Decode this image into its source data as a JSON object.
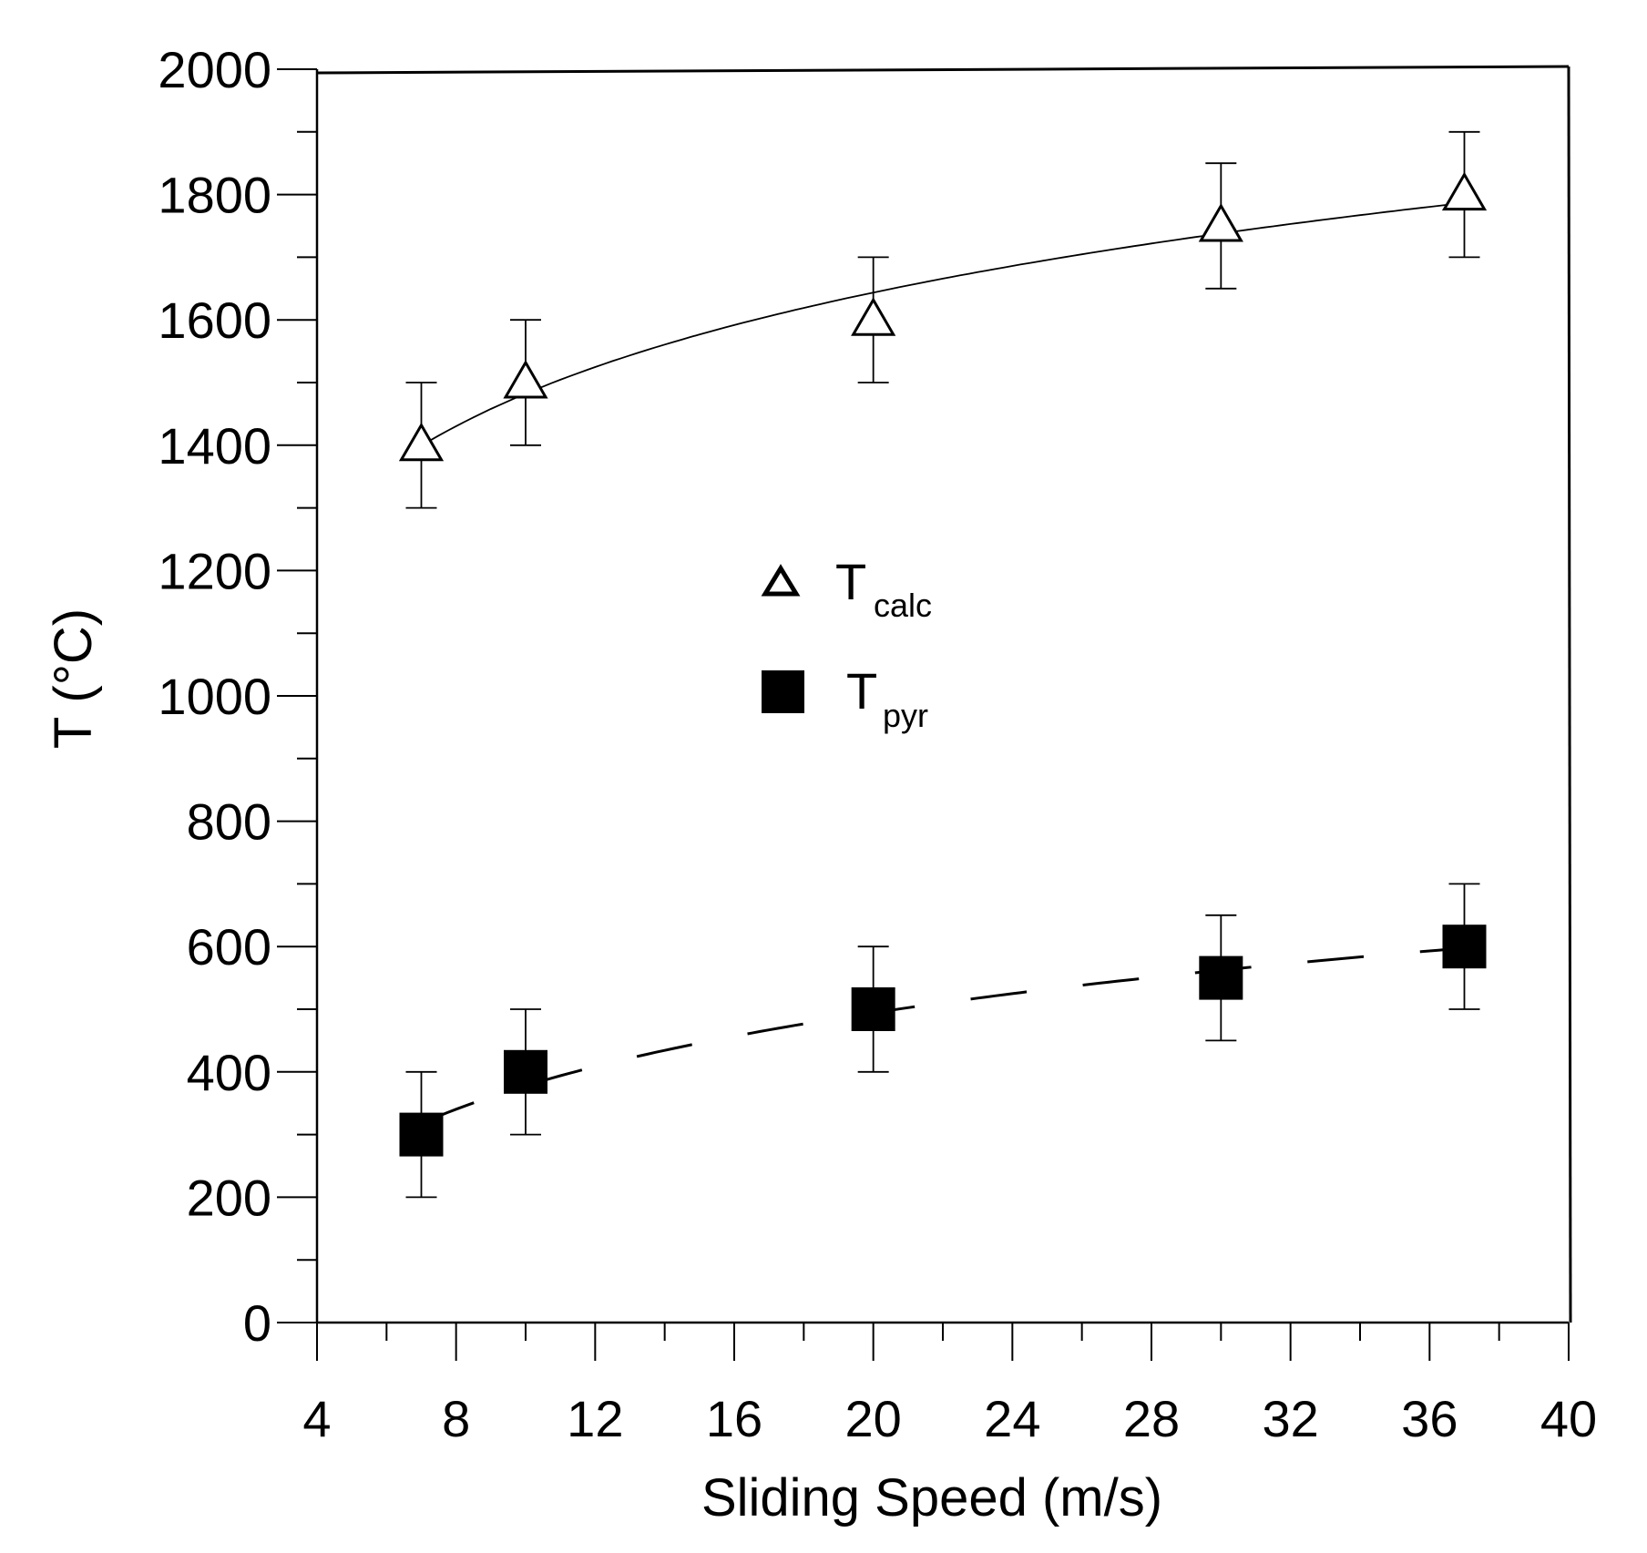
{
  "chart_data": {
    "type": "scatter",
    "title": "",
    "xlabel": "Sliding Speed (m/s)",
    "ylabel": "T (°C)",
    "xlim": [
      4,
      40
    ],
    "ylim": [
      0,
      2000
    ],
    "x_ticks": [
      4,
      8,
      12,
      16,
      20,
      24,
      28,
      32,
      36,
      40
    ],
    "y_ticks": [
      0,
      200,
      400,
      600,
      800,
      1000,
      1200,
      1400,
      1600,
      1800,
      2000
    ],
    "grid": false,
    "legend_position": "center-left",
    "series": [
      {
        "name": "T_calc",
        "label_main": "T",
        "label_sub": "calc",
        "marker": "open-triangle",
        "fit_line": "solid",
        "x": [
          7,
          10,
          20,
          30,
          37
        ],
        "y": [
          1400,
          1500,
          1600,
          1750,
          1800
        ],
        "err": [
          100,
          100,
          100,
          100,
          100
        ]
      },
      {
        "name": "T_pyr",
        "label_main": "T",
        "label_sub": "pyr",
        "marker": "filled-square",
        "fit_line": "dashed",
        "x": [
          7,
          10,
          20,
          30,
          37
        ],
        "y": [
          300,
          400,
          500,
          550,
          600
        ],
        "err": [
          100,
          100,
          100,
          100,
          100
        ]
      }
    ]
  }
}
